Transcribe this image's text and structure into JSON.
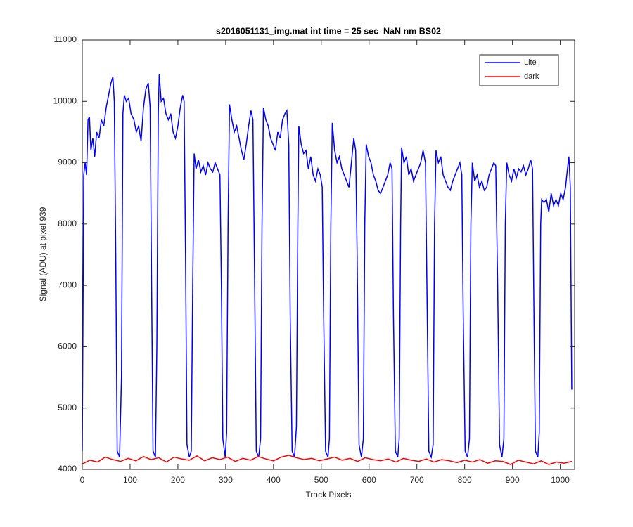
{
  "chart_data": {
    "type": "line",
    "title": "s2016051131_img.mat int time = 25 sec  NaN nm BS02",
    "x_label": "Track Pixels",
    "y_label": "Signal (ADU) at pixel 939",
    "xlim": [
      0,
      1030
    ],
    "ylim": [
      4000,
      11000
    ],
    "xticks": [
      0,
      100,
      200,
      300,
      400,
      500,
      600,
      700,
      800,
      900,
      1000
    ],
    "yticks": [
      4000,
      5000,
      6000,
      7000,
      8000,
      9000,
      10000,
      11000
    ],
    "legend": "northeast",
    "series": [
      {
        "name": "Lite",
        "color": "#0000ff",
        "x": [
          0,
          3,
          6,
          9,
          12,
          15,
          18,
          22,
          26,
          30,
          35,
          40,
          45,
          50,
          55,
          60,
          64,
          67,
          70,
          73,
          78,
          82,
          85,
          88,
          92,
          97,
          102,
          108,
          113,
          118,
          123,
          128,
          133,
          138,
          142,
          145,
          148,
          153,
          156,
          159,
          161,
          165,
          170,
          175,
          180,
          185,
          190,
          195,
          200,
          205,
          210,
          213,
          216,
          219,
          224,
          228,
          231,
          234,
          238,
          243,
          248,
          253,
          258,
          263,
          268,
          273,
          278,
          283,
          288,
          291,
          294,
          299,
          302,
          305,
          308,
          313,
          318,
          323,
          328,
          333,
          338,
          343,
          348,
          353,
          357,
          360,
          364,
          369,
          373,
          376,
          379,
          384,
          389,
          394,
          399,
          404,
          409,
          414,
          419,
          424,
          428,
          432,
          435,
          439,
          444,
          448,
          451,
          453,
          458,
          463,
          468,
          473,
          478,
          483,
          488,
          493,
          498,
          502,
          505,
          509,
          514,
          517,
          520,
          523,
          528,
          533,
          538,
          543,
          548,
          553,
          558,
          563,
          568,
          572,
          575,
          579,
          584,
          588,
          591,
          594,
          599,
          604,
          609,
          614,
          619,
          624,
          629,
          634,
          639,
          644,
          648,
          651,
          655,
          660,
          663,
          666,
          668,
          673,
          678,
          683,
          688,
          693,
          698,
          703,
          708,
          713,
          718,
          721,
          725,
          730,
          734,
          737,
          740,
          745,
          750,
          755,
          760,
          765,
          770,
          775,
          780,
          785,
          790,
          794,
          797,
          801,
          806,
          810,
          813,
          816,
          821,
          826,
          831,
          836,
          841,
          846,
          851,
          856,
          861,
          865,
          869,
          873,
          878,
          882,
          885,
          888,
          893,
          898,
          903,
          908,
          913,
          918,
          923,
          928,
          933,
          938,
          942,
          945,
          948,
          953,
          956,
          959,
          961,
          966,
          971,
          976,
          981,
          986,
          991,
          996,
          1001,
          1006,
          1011,
          1015,
          1018,
          1021,
          1024
        ],
        "values": [
          4300,
          8800,
          9000,
          8800,
          9700,
          9750,
          9200,
          9400,
          9100,
          9500,
          9400,
          9700,
          9600,
          9900,
          10100,
          10300,
          10400,
          10000,
          7500,
          4300,
          4200,
          5500,
          9800,
          10100,
          10000,
          10050,
          9800,
          9700,
          9500,
          9600,
          9350,
          9900,
          10200,
          10300,
          9900,
          7000,
          4300,
          4200,
          6000,
          9800,
          10450,
          10000,
          10050,
          9800,
          9700,
          9800,
          9500,
          9400,
          9600,
          9900,
          10100,
          10000,
          7500,
          4400,
          4200,
          4300,
          7000,
          9150,
          8900,
          9050,
          8850,
          8950,
          8800,
          9000,
          8900,
          8850,
          9000,
          8900,
          8800,
          7000,
          4500,
          4200,
          4600,
          8000,
          9950,
          9700,
          9500,
          9600,
          9400,
          9200,
          9050,
          9300,
          9600,
          9850,
          9700,
          7500,
          4300,
          4200,
          4500,
          8000,
          9900,
          9700,
          9600,
          9400,
          9300,
          9200,
          9500,
          9400,
          9700,
          9800,
          9850,
          9300,
          6500,
          4300,
          4200,
          4700,
          8000,
          9600,
          9300,
          9150,
          9200,
          8900,
          9100,
          8800,
          8700,
          8900,
          8800,
          8600,
          6500,
          4300,
          4200,
          4500,
          8000,
          9650,
          9200,
          9000,
          9100,
          8900,
          8800,
          8700,
          8600,
          9000,
          9400,
          9200,
          7500,
          4400,
          4200,
          4500,
          8000,
          9300,
          9100,
          9000,
          8800,
          8700,
          8550,
          8500,
          8600,
          8700,
          8800,
          9000,
          8900,
          6500,
          4300,
          4200,
          4500,
          8000,
          9250,
          9000,
          9100,
          8800,
          8900,
          8700,
          8800,
          8900,
          9000,
          9200,
          9000,
          7000,
          4300,
          4200,
          4400,
          8000,
          9200,
          9000,
          9100,
          8800,
          8700,
          8600,
          8550,
          8700,
          8800,
          8900,
          9000,
          8800,
          6500,
          4300,
          4200,
          4500,
          8000,
          9000,
          8700,
          8800,
          8600,
          8700,
          8550,
          8600,
          8800,
          8900,
          9000,
          8950,
          7000,
          4400,
          4200,
          4500,
          8000,
          9000,
          8800,
          8700,
          8900,
          8750,
          8900,
          8850,
          8950,
          8800,
          8900,
          9050,
          8900,
          6500,
          4300,
          4200,
          4600,
          8000,
          8400,
          8350,
          8400,
          8200,
          8500,
          8300,
          8400,
          8300,
          8500,
          8400,
          8600,
          8900,
          9100,
          8600,
          5300
        ]
      },
      {
        "name": "dark",
        "color": "#ff0000",
        "x": [
          0,
          16,
          32,
          48,
          64,
          80,
          96,
          112,
          128,
          144,
          160,
          176,
          192,
          208,
          224,
          240,
          256,
          272,
          288,
          304,
          320,
          336,
          352,
          368,
          384,
          400,
          416,
          432,
          448,
          464,
          480,
          496,
          512,
          528,
          544,
          560,
          576,
          592,
          608,
          624,
          640,
          656,
          672,
          688,
          704,
          720,
          736,
          752,
          768,
          784,
          800,
          816,
          832,
          848,
          864,
          880,
          896,
          912,
          928,
          944,
          960,
          976,
          992,
          1008,
          1024
        ],
        "values": [
          4090,
          4150,
          4120,
          4200,
          4160,
          4130,
          4180,
          4140,
          4210,
          4160,
          4190,
          4120,
          4200,
          4170,
          4150,
          4220,
          4140,
          4190,
          4160,
          4200,
          4130,
          4180,
          4150,
          4210,
          4170,
          4140,
          4200,
          4230,
          4190,
          4160,
          4180,
          4140,
          4170,
          4200,
          4150,
          4180,
          4130,
          4190,
          4160,
          4140,
          4170,
          4120,
          4180,
          4150,
          4130,
          4170,
          4120,
          4160,
          4140,
          4110,
          4150,
          4120,
          4160,
          4100,
          4140,
          4130,
          4080,
          4150,
          4120,
          4090,
          4140,
          4080,
          4120,
          4100,
          4130
        ]
      }
    ]
  }
}
